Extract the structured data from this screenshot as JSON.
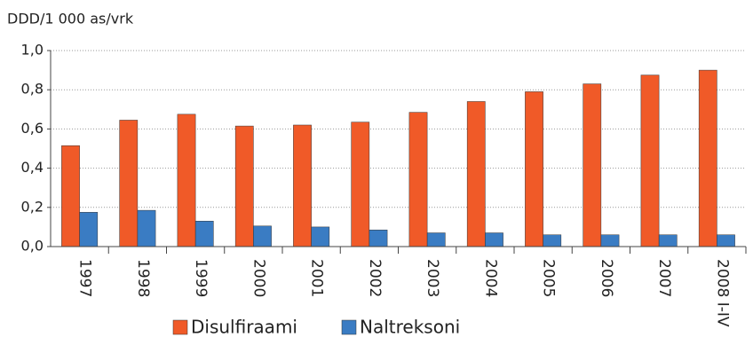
{
  "chart_data": {
    "type": "bar",
    "y_label": "DDD/1 000 as/vrk",
    "categories": [
      "1997",
      "1998",
      "1999",
      "2000",
      "2001",
      "2002",
      "2003",
      "2004",
      "2005",
      "2006",
      "2007",
      "2008 I-IV"
    ],
    "series": [
      {
        "name": "Disulfiraami",
        "color": "#f05a28",
        "values": [
          0.515,
          0.645,
          0.675,
          0.615,
          0.62,
          0.635,
          0.685,
          0.74,
          0.79,
          0.83,
          0.875,
          0.9
        ]
      },
      {
        "name": "Naltreksoni",
        "color": "#3a7cc3",
        "values": [
          0.175,
          0.185,
          0.13,
          0.105,
          0.1,
          0.085,
          0.07,
          0.07,
          0.06,
          0.06,
          0.06,
          0.06
        ]
      }
    ],
    "ylim": [
      0,
      1
    ],
    "yticks": [
      {
        "value": 0,
        "label": "0,0"
      },
      {
        "value": 0.2,
        "label": "0,2"
      },
      {
        "value": 0.4,
        "label": "0,4"
      },
      {
        "value": 0.6,
        "label": "0,6"
      },
      {
        "value": 0.8,
        "label": "0,8"
      },
      {
        "value": 1,
        "label": "1,0"
      }
    ],
    "grid": true,
    "legend": "bottom"
  }
}
